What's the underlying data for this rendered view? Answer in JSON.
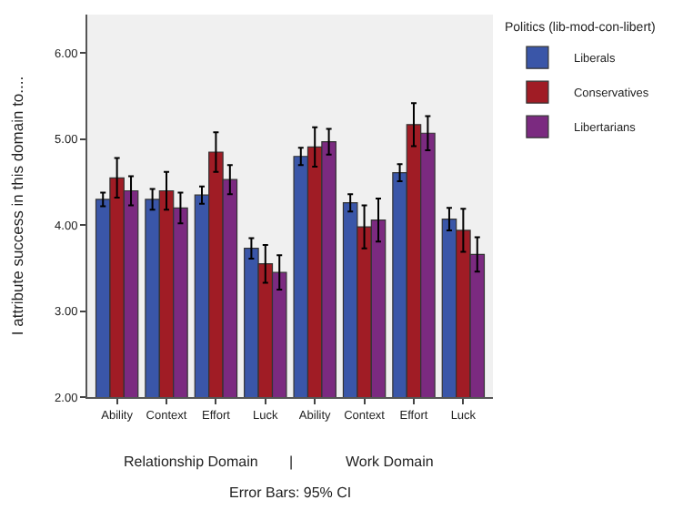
{
  "chart_data": {
    "type": "bar",
    "ylabel": "I attribute success in this domain to....",
    "legend_title": "Politics (lib-mod-con-libert)",
    "categories": [
      "Ability",
      "Context",
      "Effort",
      "Luck",
      "Ability",
      "Context",
      "Effort",
      "Luck"
    ],
    "series": [
      {
        "name": "Liberals",
        "color": "#3a56a8",
        "values": [
          4.3,
          4.3,
          4.35,
          3.73,
          4.8,
          4.26,
          4.61,
          4.07
        ],
        "errors": [
          0.08,
          0.12,
          0.1,
          0.12,
          0.1,
          0.1,
          0.1,
          0.13
        ]
      },
      {
        "name": "Conservatives",
        "color": "#a01c25",
        "values": [
          4.55,
          4.4,
          4.85,
          3.55,
          4.91,
          3.98,
          5.17,
          3.94
        ],
        "errors": [
          0.23,
          0.22,
          0.23,
          0.22,
          0.23,
          0.25,
          0.25,
          0.25
        ]
      },
      {
        "name": "Libertarians",
        "color": "#7b2a80",
        "values": [
          4.4,
          4.2,
          4.53,
          3.45,
          4.97,
          4.06,
          5.07,
          3.66
        ],
        "errors": [
          0.17,
          0.18,
          0.17,
          0.2,
          0.15,
          0.25,
          0.2,
          0.2
        ]
      }
    ],
    "ylim": [
      2,
      6.45
    ],
    "yticks": [
      {
        "value": 2,
        "label": "2.00"
      },
      {
        "value": 3,
        "label": "3.00"
      },
      {
        "value": 4,
        "label": "4.00"
      },
      {
        "value": 5,
        "label": "5.00"
      },
      {
        "value": 6,
        "label": "6.00"
      }
    ],
    "annotations": [
      "Relationship Domain",
      "|",
      "Work Domain",
      "Error Bars: 95% CI"
    ],
    "legend": "top right",
    "grid": false
  }
}
